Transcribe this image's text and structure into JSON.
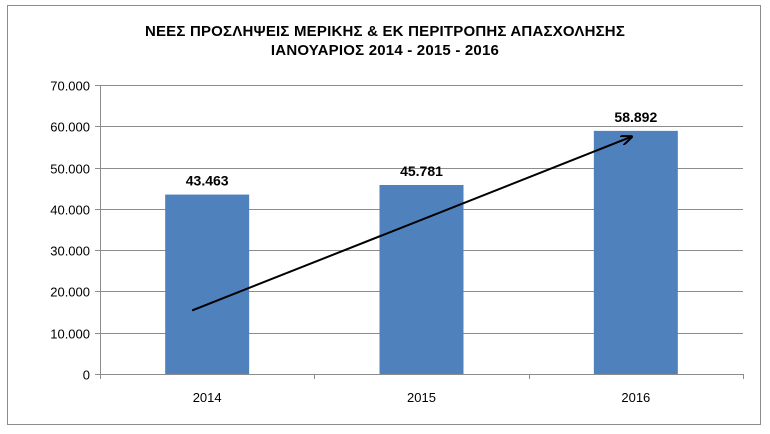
{
  "chart_data": {
    "type": "bar",
    "title": "ΝΕΕΣ ΠΡΟΣΛΗΨΕΙΣ ΜΕΡΙΚΗΣ & ΕΚ ΠΕΡΙΤΡΟΠΗΣ ΑΠΑΣΧΟΛΗΣΗΣ",
    "subtitle": "ΙΑΝΟΥΑΡΙΟΣ 2014  - 2015   - 2016",
    "categories": [
      "2014",
      "2015",
      "2016"
    ],
    "values": [
      43463,
      45781,
      58892
    ],
    "data_labels": [
      "43.463",
      "45.781",
      "58.892"
    ],
    "ylim": [
      0,
      70000
    ],
    "yticks": [
      0,
      10000,
      20000,
      30000,
      40000,
      50000,
      60000,
      70000
    ],
    "ytick_labels": [
      "0",
      "10.000",
      "20.000",
      "30.000",
      "40.000",
      "50.000",
      "60.000",
      "70.000"
    ],
    "grid": true,
    "bar_color": "#4f81bd",
    "trend_arrow": true
  }
}
